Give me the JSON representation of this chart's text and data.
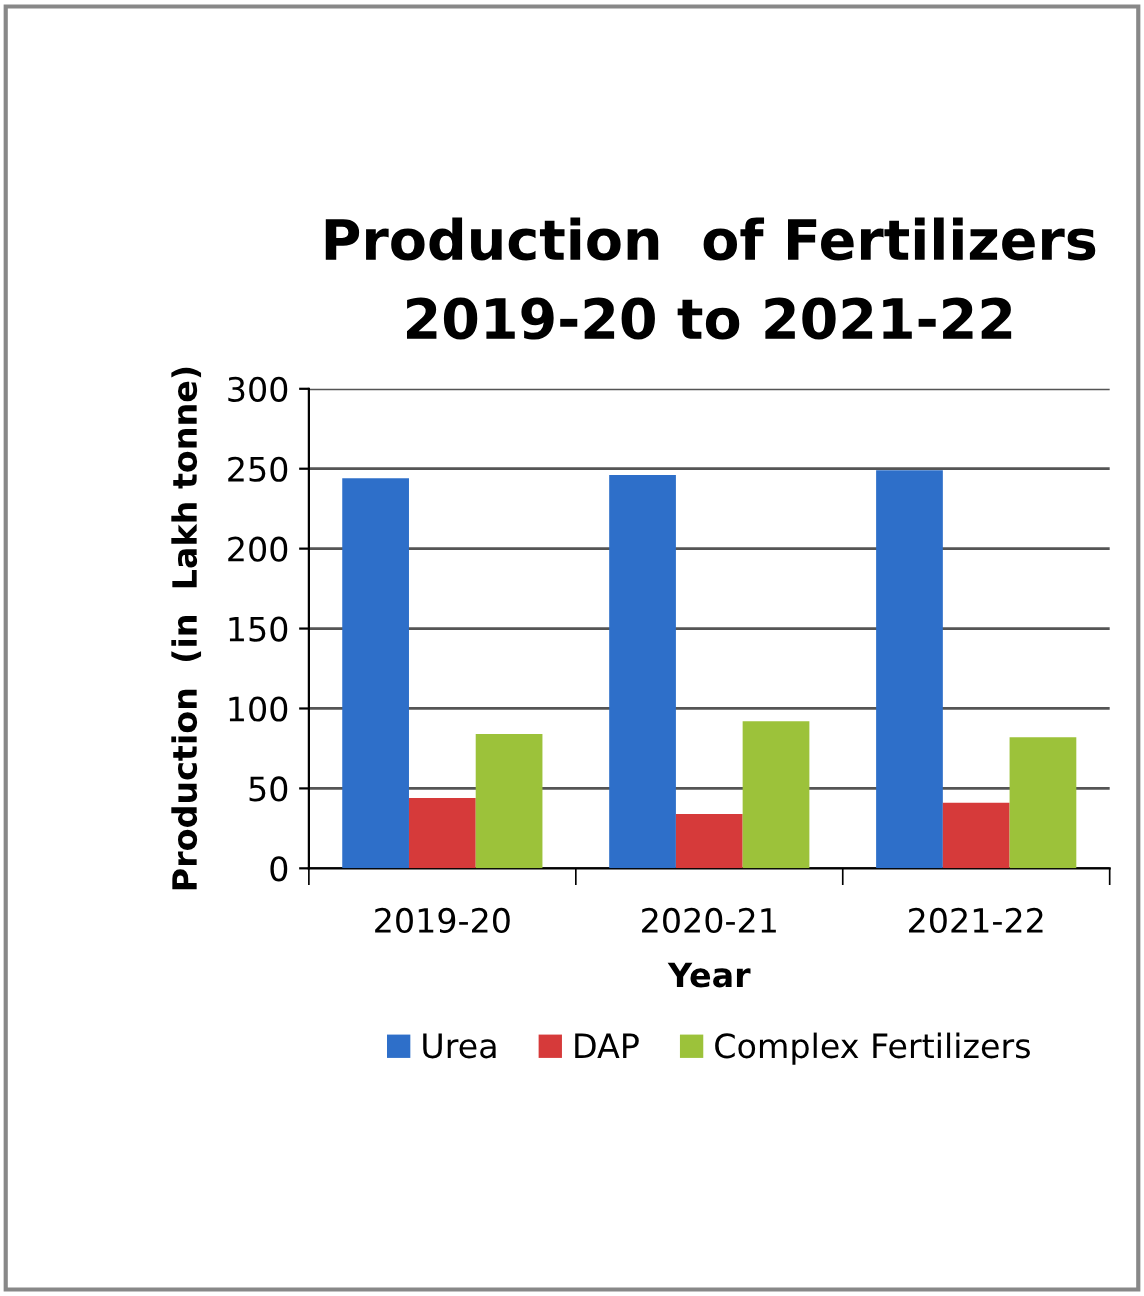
{
  "chart_data": {
    "type": "bar",
    "title": "Production  of Fertilizers\n2019-20 to 2021-22",
    "xlabel": "Year",
    "ylabel": "Production  (in  Lakh tonne)",
    "categories": [
      "2019-20",
      "2020-21",
      "2021-22"
    ],
    "series": [
      {
        "name": "Urea",
        "color": "#2e6fc9",
        "values": [
          244,
          246,
          249
        ]
      },
      {
        "name": "DAP",
        "color": "#d63a3a",
        "values": [
          44,
          34,
          41
        ]
      },
      {
        "name": "Complex Fertilizers",
        "color": "#9cc23a",
        "values": [
          84,
          92,
          82
        ]
      }
    ],
    "ylim": [
      0,
      300
    ],
    "yticks": [
      0,
      50,
      100,
      150,
      200,
      250,
      300
    ],
    "grid": "y",
    "legend": "bottom"
  }
}
